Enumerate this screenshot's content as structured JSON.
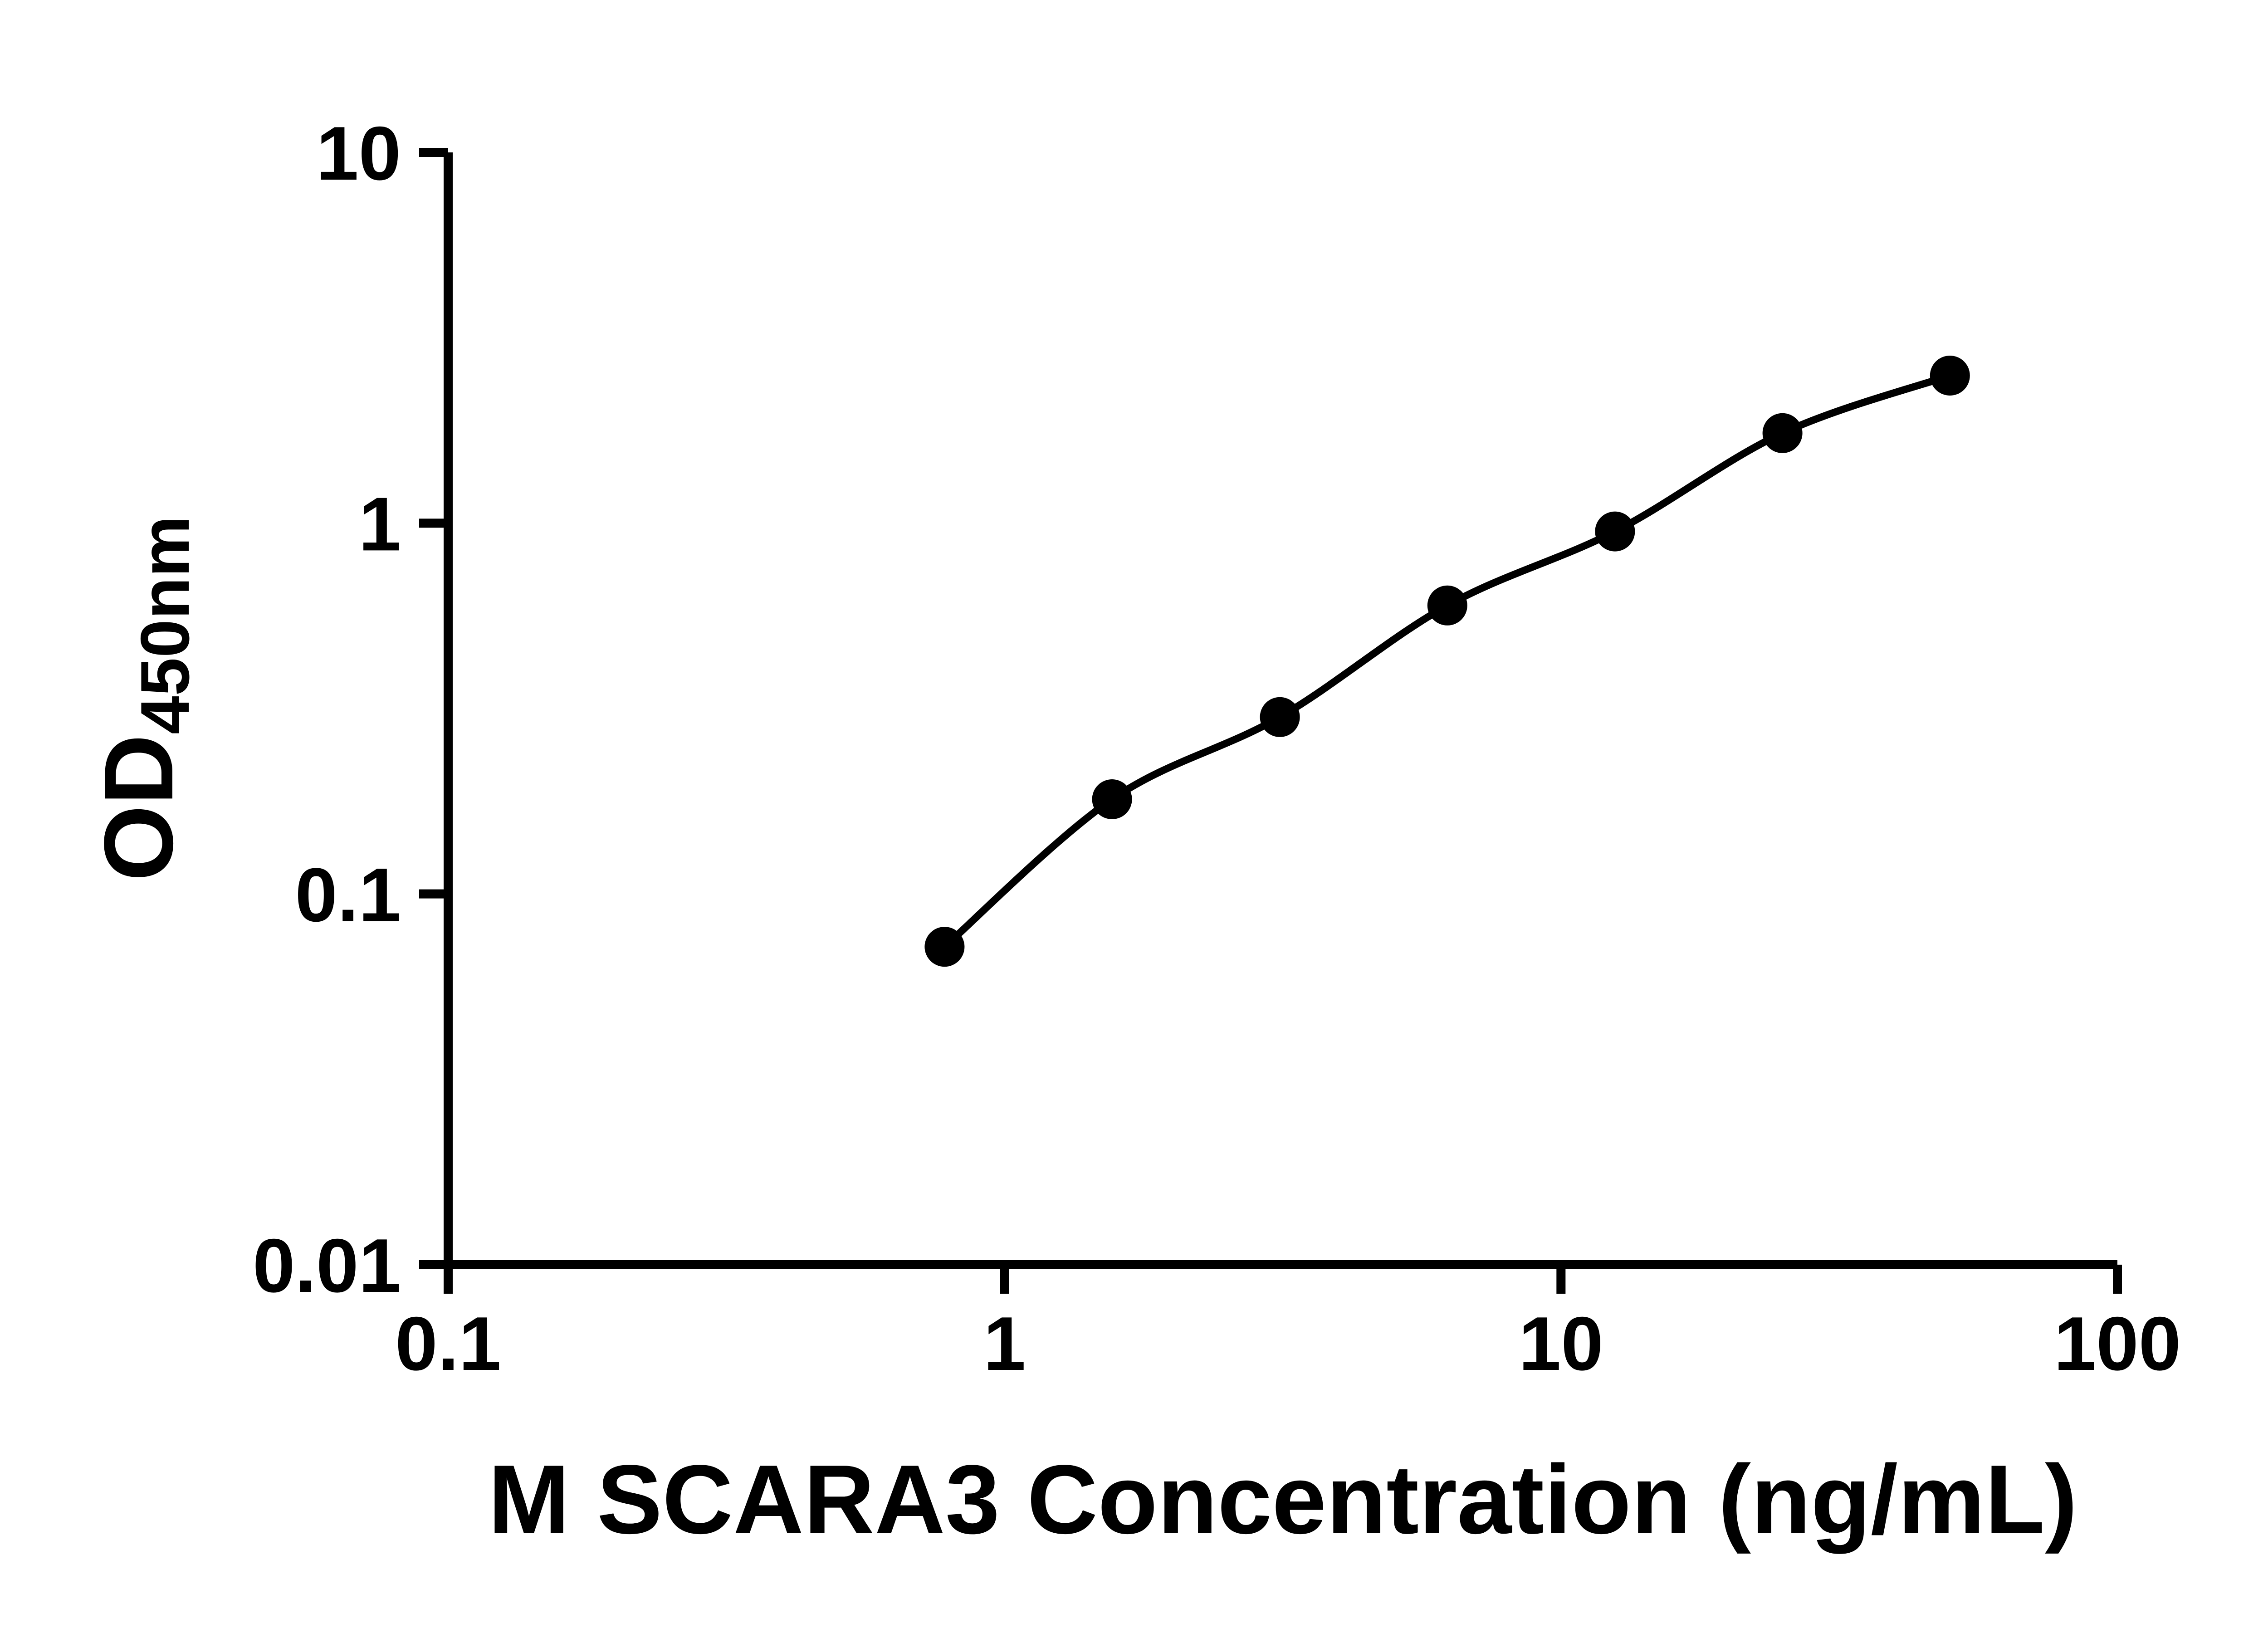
{
  "chart_data": {
    "type": "scatter",
    "subtype": "elisa-standard-curve",
    "xlabel": "M SCARA3 Concentration (ng/mL)",
    "ylabel_main": "OD",
    "ylabel_sub": "450nm",
    "xscale": "log",
    "yscale": "log",
    "xlim": [
      0.1,
      100
    ],
    "ylim": [
      0.01,
      10
    ],
    "x_ticks": [
      0.1,
      1,
      10,
      100
    ],
    "x_tick_labels": [
      "0.1",
      "1",
      "10",
      "100"
    ],
    "y_ticks": [
      0.01,
      0.1,
      1,
      10
    ],
    "y_tick_labels": [
      "0.01",
      "0.1",
      "1",
      "10"
    ],
    "points": [
      {
        "x": 0.78,
        "y": 0.072
      },
      {
        "x": 1.56,
        "y": 0.18
      },
      {
        "x": 3.125,
        "y": 0.3
      },
      {
        "x": 6.25,
        "y": 0.6
      },
      {
        "x": 12.5,
        "y": 0.95
      },
      {
        "x": 25,
        "y": 1.75
      },
      {
        "x": 50,
        "y": 2.5
      }
    ],
    "fit_line": true,
    "grid": false,
    "legend": "none",
    "marker_color": "#000000",
    "line_color": "#000000",
    "axis_color": "#000000",
    "background_color": "#ffffff"
  }
}
